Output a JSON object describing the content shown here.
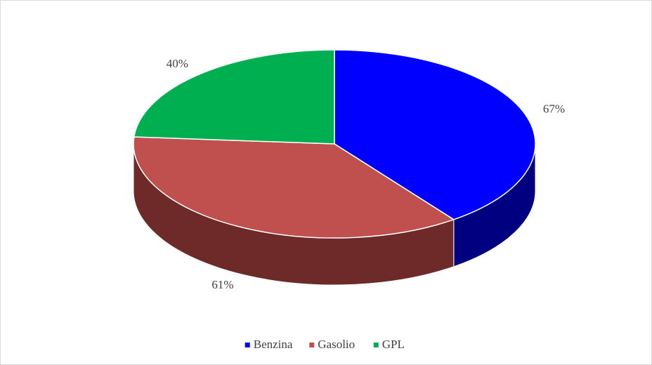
{
  "chart_data": {
    "type": "pie",
    "categories": [
      "Benzina",
      "Gasolio",
      "GPL"
    ],
    "values": [
      67,
      61,
      40
    ],
    "value_labels": [
      "67%",
      "61%",
      "40%"
    ],
    "colors": [
      "#0000ff",
      "#c0504d",
      "#00b050"
    ],
    "side_colors": [
      "#000080",
      "#6e2a28",
      "#006a30"
    ],
    "legend": "bottom"
  }
}
